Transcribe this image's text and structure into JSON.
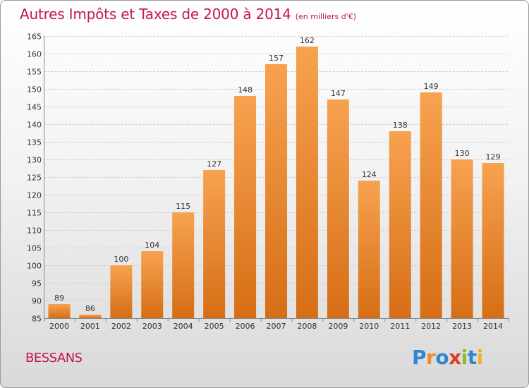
{
  "chart_data": {
    "type": "bar",
    "title": "Autres Impôts et Taxes de 2000 à 2014",
    "subtitle": "(en milliers d'€)",
    "categories": [
      "2000",
      "2001",
      "2002",
      "2003",
      "2004",
      "2005",
      "2006",
      "2007",
      "2008",
      "2009",
      "2010",
      "2011",
      "2012",
      "2013",
      "2014"
    ],
    "values": [
      89,
      86,
      100,
      104,
      115,
      127,
      148,
      157,
      162,
      147,
      124,
      138,
      149,
      130,
      129
    ],
    "ylim": [
      85,
      165
    ],
    "yticks": [
      85,
      90,
      95,
      100,
      105,
      110,
      115,
      120,
      125,
      130,
      135,
      140,
      145,
      150,
      155,
      160,
      165
    ],
    "grid": true,
    "bar_color": "#f08a2c"
  },
  "place_name": "BESSANS",
  "logo_text": "Proxiti"
}
